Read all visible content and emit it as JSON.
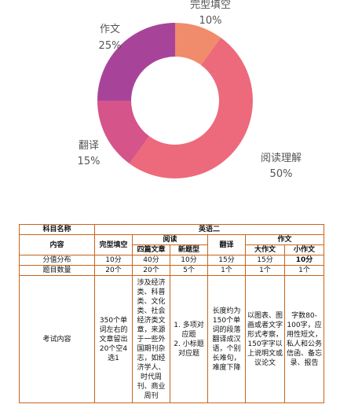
{
  "chart_data": {
    "type": "pie",
    "variant": "donut",
    "slices": [
      {
        "label": "完型填空",
        "value": 10,
        "pct_text": "10%",
        "color": "#f08c6c"
      },
      {
        "label": "阅读理解",
        "value": 50,
        "pct_text": "50%",
        "color": "#ec6a7c"
      },
      {
        "label": "翻译",
        "value": 15,
        "pct_text": "15%",
        "color": "#d5548a"
      },
      {
        "label": "作文",
        "value": 25,
        "pct_text": "25%",
        "color": "#a7449a"
      }
    ]
  },
  "table": {
    "h_subject": "科目名称",
    "subject_value": "英语二",
    "h_content": "内容",
    "col_cloze": "完型填空",
    "grp_reading": "阅读",
    "col_reading_a": "四篇文章",
    "col_reading_b": "新题型",
    "col_translation": "翻译",
    "grp_writing": "作文",
    "col_writing_big": "大作文",
    "col_writing_small": "小作文",
    "row_score_label": "分值分布",
    "scores": [
      "10分",
      "40分",
      "10分",
      "15分",
      "15分",
      "10分"
    ],
    "row_count_label": "题目数量",
    "counts": [
      "20个",
      "20个",
      "5个",
      "1个",
      "1个",
      "1个"
    ],
    "row_desc_label": "考试内容",
    "desc": [
      "350个单词左右的文章留出20个空4选1",
      "涉及经济类、科普类、文化类、社会经济类文章，来源于一些外国期刊杂志，如经济学人、时代周刊、商业周刊",
      "1. 多项对应题\n2. 小标题对应题",
      "长度约为150个单词的段落翻译成汉语，个别长难句，难度下降",
      "以图表、图画或者文字形式考察，150字字以上说明文或议论文",
      "字数80-100字，应用性短文，私人和公务信函、备忘录、报告"
    ]
  }
}
